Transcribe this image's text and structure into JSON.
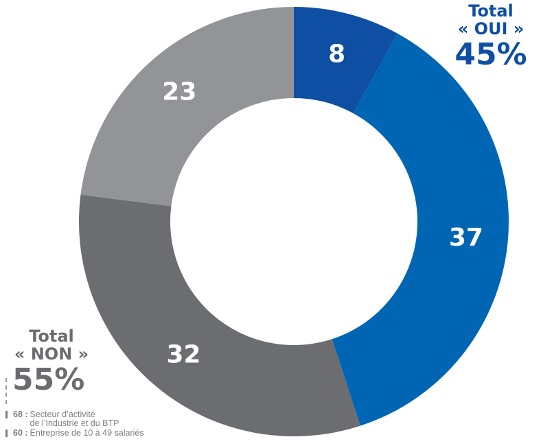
{
  "chart_data": {
    "type": "donut",
    "categories": [
      "slice-1",
      "slice-2",
      "slice-3",
      "slice-4"
    ],
    "values": [
      8,
      37,
      32,
      23
    ],
    "labels": [
      "8",
      "37",
      "32",
      "23"
    ],
    "colors": [
      "#0f4fa3",
      "#0066b3",
      "#6c6d71",
      "#939498"
    ],
    "start_angle_deg": 0,
    "direction": "clockwise",
    "title": "",
    "legend": "none"
  },
  "totals": {
    "oui": {
      "word": "Total",
      "label": "« OUI »",
      "percent": "45%",
      "color": "#0f4fa3"
    },
    "non": {
      "word": "Total",
      "label": "« NON »",
      "percent": "55%",
      "color": "#6b6c70"
    }
  },
  "notes": [
    {
      "number": "68 :",
      "text": "Secteur d’activité\nde l’Industrie et du BTP"
    },
    {
      "number": "60 :",
      "text": "Entreprise de 10 à 49 salariés"
    }
  ]
}
